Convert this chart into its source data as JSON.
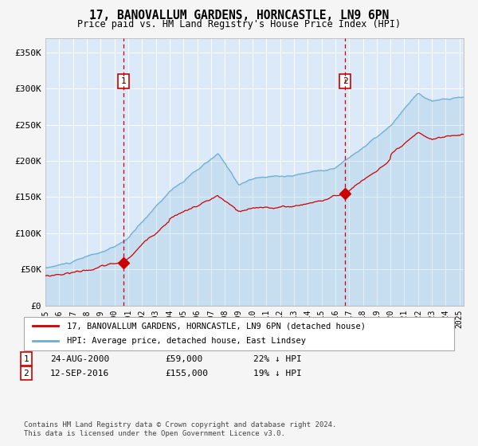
{
  "title": "17, BANOVALLUM GARDENS, HORNCASTLE, LN9 6PN",
  "subtitle": "Price paid vs. HM Land Registry's House Price Index (HPI)",
  "ylim": [
    0,
    370000
  ],
  "yticks": [
    0,
    50000,
    100000,
    150000,
    200000,
    250000,
    300000,
    350000
  ],
  "ytick_labels": [
    "£0",
    "£50K",
    "£100K",
    "£150K",
    "£200K",
    "£250K",
    "£300K",
    "£350K"
  ],
  "xmin_year": 1995,
  "xmax_year": 2025,
  "xticks": [
    1995,
    1996,
    1997,
    1998,
    1999,
    2000,
    2001,
    2002,
    2003,
    2004,
    2005,
    2006,
    2007,
    2008,
    2009,
    2010,
    2011,
    2012,
    2013,
    2014,
    2015,
    2016,
    2017,
    2018,
    2019,
    2020,
    2021,
    2022,
    2023,
    2024,
    2025
  ],
  "sale1_date": 2000.65,
  "sale1_price": 59000,
  "sale2_date": 2016.71,
  "sale2_price": 155000,
  "hpi_line_color": "#6baed6",
  "price_line_color": "#cc0000",
  "dot_color": "#cc0000",
  "vline_color": "#cc0000",
  "plot_bg": "#dce9f8",
  "fig_bg": "#f5f5f5",
  "grid_color": "#ffffff",
  "legend_line1": "17, BANOVALLUM GARDENS, HORNCASTLE, LN9 6PN (detached house)",
  "legend_line2": "HPI: Average price, detached house, East Lindsey",
  "footnote": "Contains HM Land Registry data © Crown copyright and database right 2024.\nThis data is licensed under the Open Government Licence v3.0."
}
